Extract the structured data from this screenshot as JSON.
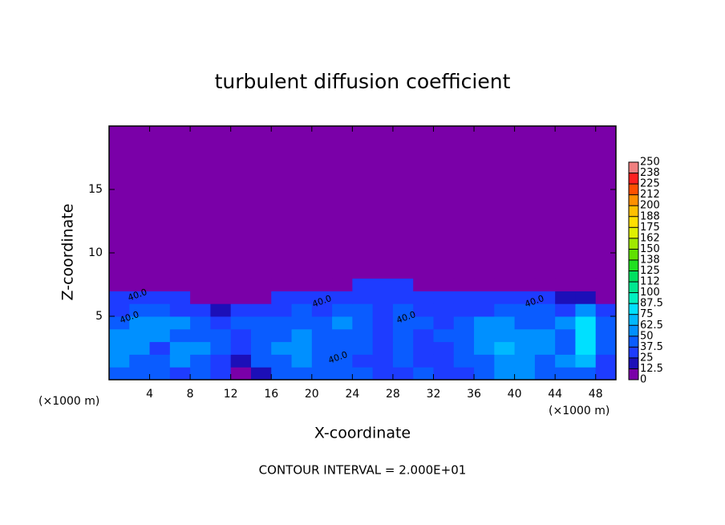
{
  "chart_data": {
    "type": "heatmap",
    "title": "turbulent diffusion coefficient",
    "x_label": "X-coordinate",
    "y_label": "Z-coordinate",
    "x_unit_left": "(×1000 m)",
    "x_unit_right": "(×1000 m)",
    "footer": "CONTOUR INTERVAL = 2.000E+01",
    "annotations": [
      "40.0",
      "40.0",
      "40.0",
      "40.0",
      "40.0",
      "40.0"
    ],
    "xlim": [
      0,
      50
    ],
    "ylim": [
      0,
      20
    ],
    "xticks": [
      4,
      8,
      12,
      16,
      20,
      24,
      28,
      32,
      36,
      40,
      44,
      48
    ],
    "yticks": [
      5,
      10,
      15
    ],
    "xbins": [
      0,
      2,
      4,
      6,
      8,
      10,
      12,
      14,
      16,
      18,
      20,
      22,
      24,
      26,
      28,
      30,
      32,
      34,
      36,
      38,
      40,
      42,
      44,
      46,
      48,
      50
    ],
    "ybins": [
      0,
      1,
      2,
      3,
      4,
      5,
      6,
      7,
      8,
      20
    ],
    "z": [
      [
        40,
        45,
        40,
        35,
        45,
        30,
        10,
        15,
        40,
        45,
        40,
        45,
        40,
        30,
        35,
        40,
        35,
        35,
        40,
        55,
        50,
        40,
        45,
        40,
        35
      ],
      [
        50,
        45,
        45,
        60,
        40,
        35,
        20,
        40,
        45,
        50,
        45,
        40,
        35,
        35,
        40,
        35,
        35,
        40,
        45,
        60,
        50,
        45,
        55,
        70,
        35
      ],
      [
        55,
        60,
        35,
        50,
        55,
        40,
        30,
        45,
        50,
        50,
        45,
        40,
        40,
        35,
        45,
        35,
        35,
        40,
        50,
        65,
        55,
        50,
        45,
        85,
        40
      ],
      [
        50,
        55,
        60,
        45,
        40,
        45,
        35,
        40,
        45,
        50,
        45,
        45,
        40,
        35,
        40,
        35,
        40,
        45,
        60,
        55,
        50,
        50,
        40,
        80,
        45
      ],
      [
        45,
        50,
        55,
        50,
        40,
        35,
        45,
        40,
        40,
        45,
        45,
        50,
        40,
        35,
        40,
        40,
        35,
        40,
        55,
        60,
        45,
        40,
        50,
        75,
        40
      ],
      [
        35,
        40,
        40,
        35,
        25,
        15,
        25,
        30,
        35,
        40,
        35,
        40,
        40,
        35,
        40,
        35,
        35,
        35,
        35,
        40,
        45,
        40,
        35,
        60,
        35
      ],
      [
        30,
        30,
        30,
        30,
        10,
        10,
        5,
        5,
        25,
        25,
        30,
        30,
        35,
        35,
        35,
        35,
        35,
        35,
        30,
        30,
        25,
        25,
        20,
        20,
        10
      ],
      [
        0,
        0,
        0,
        0,
        0,
        0,
        0,
        0,
        0,
        0,
        0,
        0,
        25,
        25,
        25,
        0,
        0,
        0,
        0,
        0,
        0,
        0,
        0,
        0,
        0
      ],
      [
        0,
        0,
        0,
        0,
        0,
        0,
        0,
        0,
        0,
        0,
        0,
        0,
        0,
        0,
        0,
        0,
        0,
        0,
        0,
        0,
        0,
        0,
        0,
        0,
        0
      ]
    ],
    "levels": [
      0,
      12.5,
      25,
      37.5,
      50,
      62.5,
      75,
      87.5,
      100,
      {
        "value": 112.5,
        "label": "112"
      },
      125,
      {
        "value": 137.5,
        "label": "138"
      },
      150,
      {
        "value": 162.5,
        "label": "162"
      },
      175,
      {
        "value": 187.5,
        "label": "188"
      },
      200,
      {
        "value": 212.5,
        "label": "212"
      },
      225,
      {
        "value": 237.5,
        "label": "238"
      },
      250
    ],
    "colors": [
      "#7a00a8",
      "#1c0fb8",
      "#1e3cff",
      "#0a5cff",
      "#0090ff",
      "#00b8ff",
      "#00e0ff",
      "#00f0c0",
      "#00e890",
      "#00e060",
      "#20e020",
      "#60e000",
      "#a0e800",
      "#e0f000",
      "#ffe000",
      "#ffc000",
      "#ff9000",
      "#ff5000",
      "#ff2020",
      "#f08080"
    ]
  }
}
